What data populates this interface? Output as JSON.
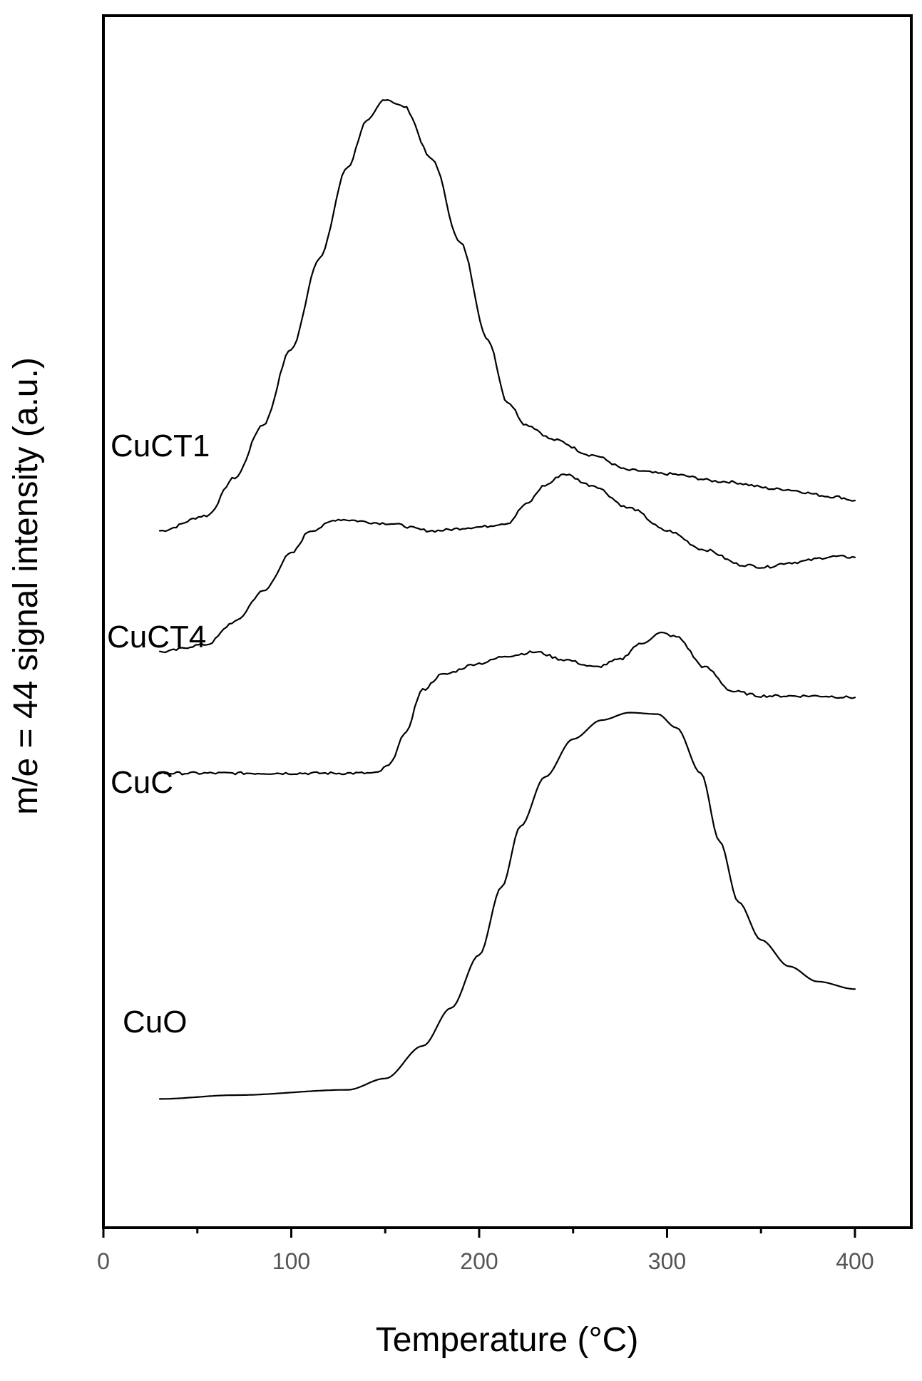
{
  "chart_data": {
    "type": "line",
    "xlabel": "Temperature (°C)",
    "ylabel": "m/e = 44 signal intensity (a.u.)",
    "xlim": [
      0,
      430
    ],
    "ylim": [
      0,
      16
    ],
    "x_ticks": [
      0,
      100,
      200,
      300,
      400
    ],
    "x_tick_labels": [
      "0",
      "100",
      "200",
      "300",
      "400"
    ],
    "y_tick_labels": false,
    "grid": false,
    "legend": "none",
    "series": [
      {
        "name": "CuCT1",
        "points": [
          [
            30,
            9.2
          ],
          [
            55,
            9.4
          ],
          [
            70,
            9.9
          ],
          [
            85,
            10.6
          ],
          [
            100,
            11.6
          ],
          [
            115,
            12.8
          ],
          [
            130,
            14.0
          ],
          [
            140,
            14.6
          ],
          [
            150,
            14.9
          ],
          [
            160,
            14.8
          ],
          [
            175,
            14.1
          ],
          [
            190,
            13.0
          ],
          [
            205,
            11.7
          ],
          [
            215,
            10.9
          ],
          [
            225,
            10.6
          ],
          [
            240,
            10.4
          ],
          [
            260,
            10.2
          ],
          [
            280,
            10.0
          ],
          [
            300,
            9.95
          ],
          [
            330,
            9.85
          ],
          [
            360,
            9.75
          ],
          [
            390,
            9.65
          ],
          [
            400,
            9.6
          ]
        ]
      },
      {
        "name": "CuCT4",
        "points": [
          [
            30,
            7.6
          ],
          [
            55,
            7.7
          ],
          [
            70,
            8.0
          ],
          [
            85,
            8.4
          ],
          [
            100,
            8.9
          ],
          [
            110,
            9.2
          ],
          [
            125,
            9.35
          ],
          [
            150,
            9.3
          ],
          [
            175,
            9.2
          ],
          [
            200,
            9.25
          ],
          [
            215,
            9.3
          ],
          [
            225,
            9.55
          ],
          [
            235,
            9.8
          ],
          [
            245,
            9.95
          ],
          [
            260,
            9.8
          ],
          [
            280,
            9.5
          ],
          [
            300,
            9.2
          ],
          [
            320,
            8.95
          ],
          [
            340,
            8.75
          ],
          [
            352,
            8.72
          ],
          [
            365,
            8.78
          ],
          [
            390,
            8.86
          ],
          [
            400,
            8.85
          ]
        ]
      },
      {
        "name": "CuC",
        "points": [
          [
            30,
            6.0
          ],
          [
            100,
            6.0
          ],
          [
            145,
            6.0
          ],
          [
            152,
            6.1
          ],
          [
            160,
            6.5
          ],
          [
            170,
            7.1
          ],
          [
            180,
            7.3
          ],
          [
            200,
            7.45
          ],
          [
            215,
            7.55
          ],
          [
            230,
            7.6
          ],
          [
            245,
            7.5
          ],
          [
            262,
            7.4
          ],
          [
            275,
            7.5
          ],
          [
            285,
            7.7
          ],
          [
            297,
            7.85
          ],
          [
            305,
            7.8
          ],
          [
            320,
            7.4
          ],
          [
            335,
            7.08
          ],
          [
            350,
            7.02
          ],
          [
            380,
            7.02
          ],
          [
            400,
            7.0
          ]
        ]
      },
      {
        "name": "CuO",
        "points": [
          [
            30,
            1.7
          ],
          [
            70,
            1.75
          ],
          [
            130,
            1.82
          ],
          [
            150,
            1.97
          ],
          [
            170,
            2.4
          ],
          [
            185,
            2.9
          ],
          [
            200,
            3.6
          ],
          [
            212,
            4.5
          ],
          [
            222,
            5.3
          ],
          [
            235,
            5.95
          ],
          [
            250,
            6.45
          ],
          [
            265,
            6.7
          ],
          [
            280,
            6.8
          ],
          [
            295,
            6.78
          ],
          [
            305,
            6.6
          ],
          [
            318,
            6.0
          ],
          [
            328,
            5.1
          ],
          [
            338,
            4.3
          ],
          [
            350,
            3.8
          ],
          [
            365,
            3.45
          ],
          [
            380,
            3.25
          ],
          [
            400,
            3.15
          ]
        ]
      }
    ]
  }
}
